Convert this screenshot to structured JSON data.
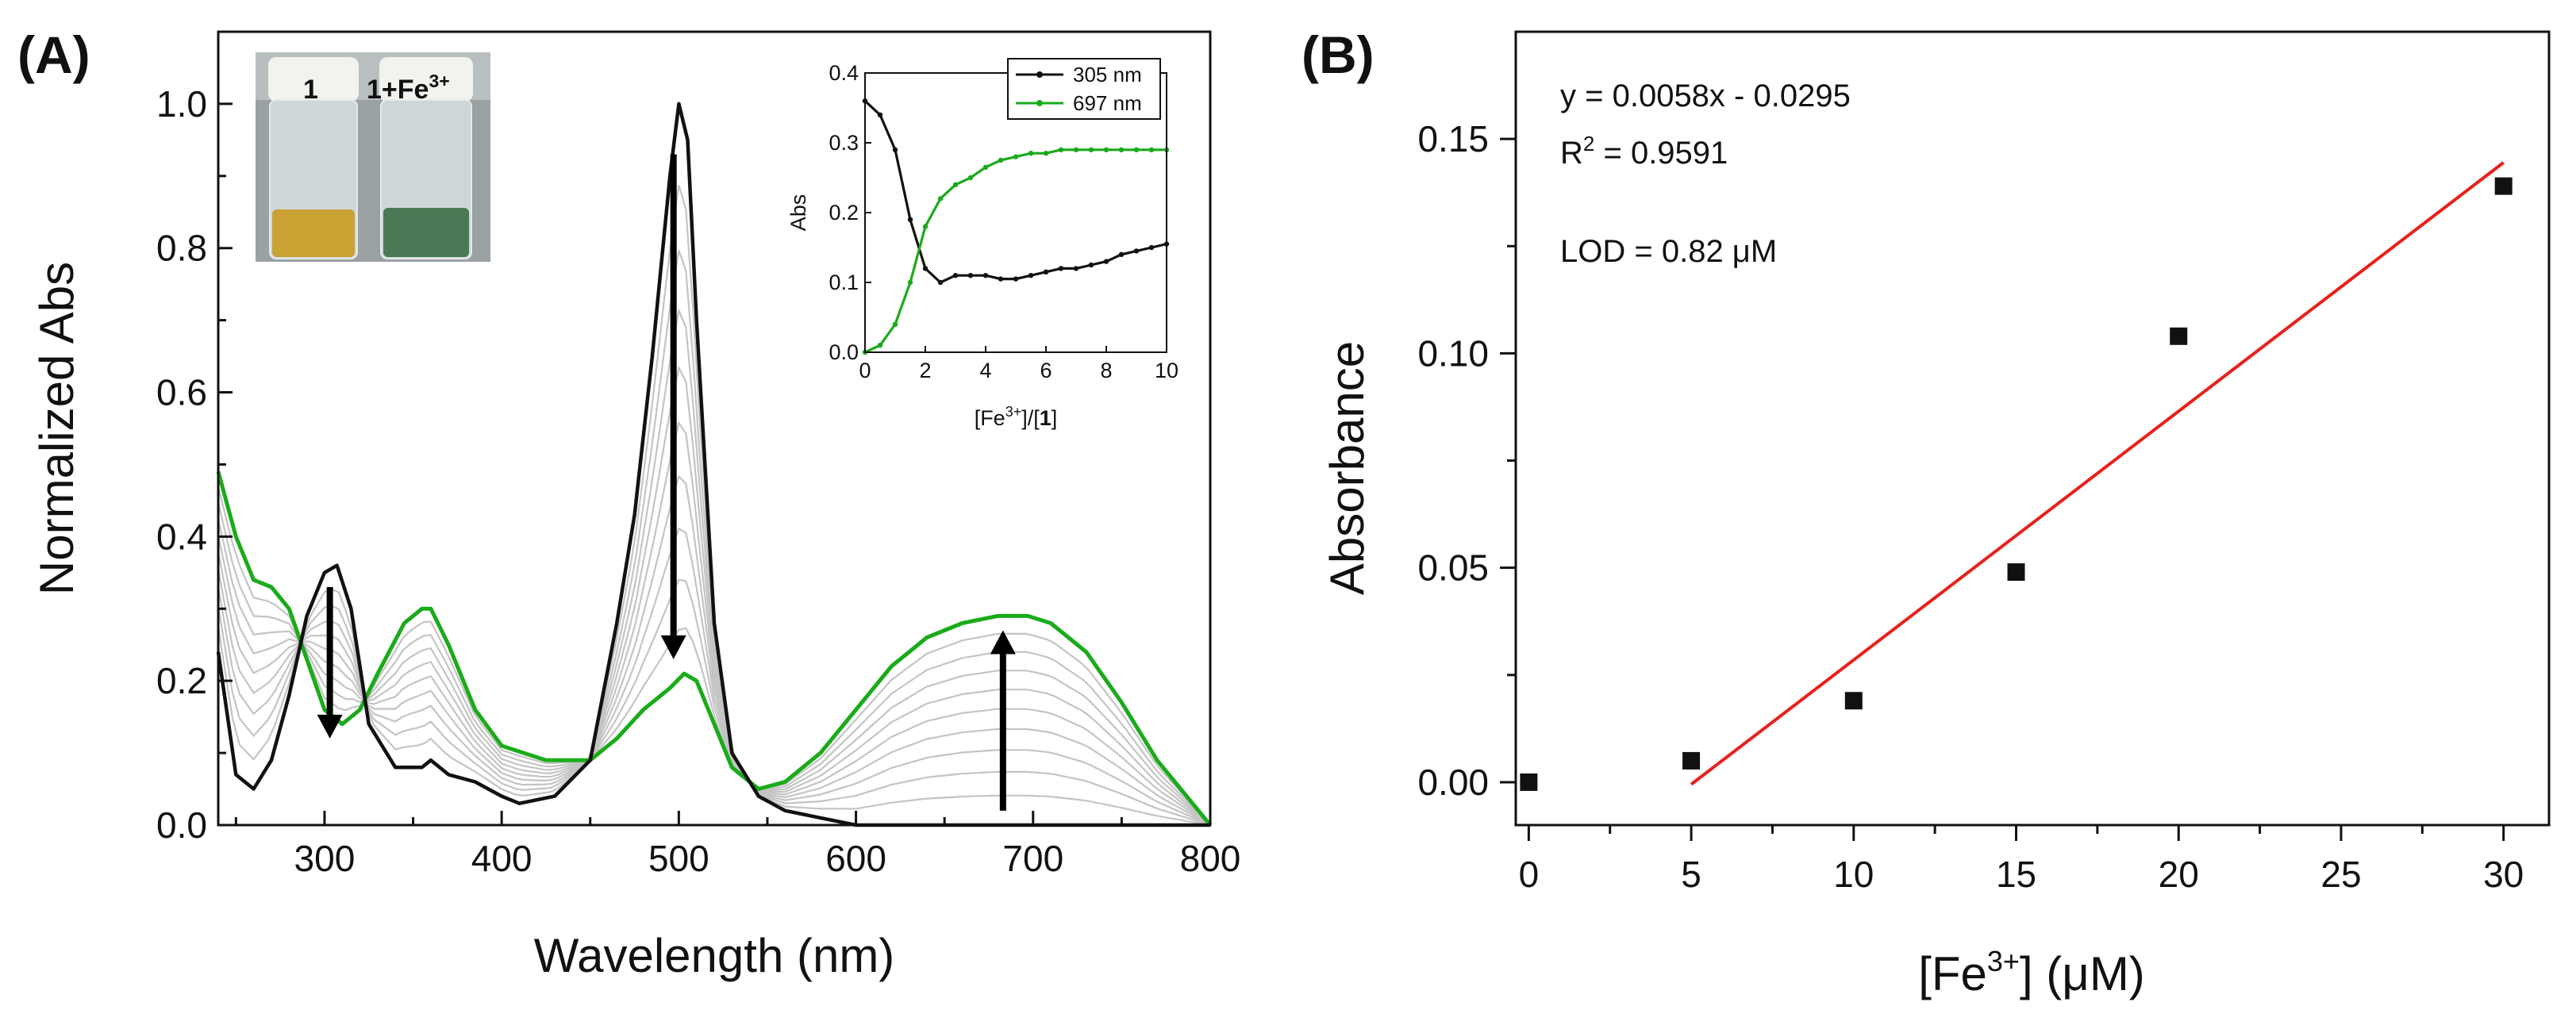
{
  "chart_data": [
    {
      "panel": "(A)",
      "type": "line",
      "xlabel": "Wavelength (nm)",
      "ylabel": "Normalized Abs",
      "xlim": [
        240,
        800
      ],
      "ylim": [
        0,
        1.1
      ],
      "xticks": [
        "300",
        "400",
        "500",
        "600",
        "700",
        "800"
      ],
      "yticks": [
        "0.0",
        "0.2",
        "0.4",
        "0.6",
        "0.8",
        "1.0"
      ],
      "colors": {
        "start": "#111111",
        "end": "#1aab1a",
        "intermediate": "#c4c4c4",
        "arrow": "#000000"
      },
      "series": [
        {
          "role": "initial",
          "x": [
            240,
            250,
            260,
            270,
            280,
            290,
            300,
            307,
            315,
            325,
            340,
            355,
            360,
            370,
            385,
            400,
            410,
            430,
            450,
            465,
            475,
            485,
            495,
            500,
            505,
            510,
            520,
            530,
            545,
            560,
            580,
            600,
            650,
            700,
            800
          ],
          "y": [
            0.24,
            0.07,
            0.05,
            0.09,
            0.18,
            0.29,
            0.35,
            0.36,
            0.3,
            0.14,
            0.08,
            0.08,
            0.09,
            0.07,
            0.06,
            0.04,
            0.03,
            0.04,
            0.09,
            0.28,
            0.43,
            0.65,
            0.9,
            1.0,
            0.95,
            0.7,
            0.28,
            0.1,
            0.04,
            0.02,
            0.01,
            0.0,
            0.0,
            0.0,
            0.0
          ]
        },
        {
          "role": "final",
          "x": [
            240,
            250,
            260,
            270,
            280,
            290,
            300,
            310,
            320,
            330,
            345,
            355,
            360,
            370,
            385,
            400,
            425,
            450,
            465,
            480,
            495,
            503,
            510,
            520,
            530,
            545,
            560,
            580,
            600,
            620,
            640,
            660,
            680,
            697,
            710,
            730,
            750,
            770,
            790,
            800
          ],
          "y": [
            0.49,
            0.4,
            0.34,
            0.33,
            0.3,
            0.23,
            0.16,
            0.14,
            0.16,
            0.21,
            0.28,
            0.3,
            0.3,
            0.25,
            0.16,
            0.11,
            0.09,
            0.09,
            0.12,
            0.16,
            0.19,
            0.21,
            0.2,
            0.14,
            0.08,
            0.05,
            0.06,
            0.1,
            0.16,
            0.22,
            0.26,
            0.28,
            0.29,
            0.29,
            0.28,
            0.24,
            0.17,
            0.09,
            0.03,
            0.0
          ]
        }
      ],
      "arrows": [
        {
          "x": 303,
          "y_from": 0.33,
          "y_to": 0.12
        },
        {
          "x": 497,
          "y_from": 0.93,
          "y_to": 0.23
        },
        {
          "x": 683,
          "y_from": 0.02,
          "y_to": 0.27
        }
      ],
      "photo_inset": {
        "labels": [
          "1",
          "1+Fe",
          "3+"
        ],
        "colors": {
          "left_solution": "#c9a233",
          "right_solution": "#4a7a55"
        }
      },
      "inset": {
        "type": "line",
        "xlabel": "[Fe",
        "xlabel_sup": "3+",
        "xlabel_tail": "]/[",
        "xlabel_bold": "1",
        "xlabel_end": "]",
        "ylabel": "Abs",
        "xlim": [
          0,
          10
        ],
        "ylim": [
          0,
          0.4
        ],
        "xticks": [
          "0",
          "2",
          "4",
          "6",
          "8",
          "10"
        ],
        "yticks": [
          "0.0",
          "0.1",
          "0.2",
          "0.3",
          "0.4"
        ],
        "legend": [
          "305 nm",
          "697 nm"
        ],
        "series": [
          {
            "name": "305 nm",
            "color": "#111111",
            "x": [
              0,
              0.5,
              1,
              1.5,
              2,
              2.5,
              3,
              3.5,
              4,
              4.5,
              5,
              5.5,
              6,
              6.5,
              7,
              7.5,
              8,
              8.5,
              9,
              9.5,
              10
            ],
            "y": [
              0.36,
              0.34,
              0.29,
              0.19,
              0.12,
              0.1,
              0.11,
              0.11,
              0.11,
              0.105,
              0.105,
              0.11,
              0.115,
              0.12,
              0.12,
              0.125,
              0.13,
              0.14,
              0.145,
              0.15,
              0.155
            ]
          },
          {
            "name": "697 nm",
            "color": "#1aab1a",
            "x": [
              0,
              0.5,
              1,
              1.5,
              2,
              2.5,
              3,
              3.5,
              4,
              4.5,
              5,
              5.5,
              6,
              6.5,
              7,
              7.5,
              8,
              8.5,
              9,
              9.5,
              10
            ],
            "y": [
              0.0,
              0.01,
              0.04,
              0.1,
              0.18,
              0.22,
              0.24,
              0.25,
              0.265,
              0.275,
              0.28,
              0.285,
              0.285,
              0.29,
              0.29,
              0.29,
              0.29,
              0.29,
              0.29,
              0.29,
              0.29
            ]
          }
        ]
      }
    },
    {
      "panel": "(B)",
      "type": "scatter",
      "xlabel": "[Fe",
      "xlabel_sup": "3+",
      "xlabel_tail": "] (μM)",
      "ylabel": "Absorbance",
      "xlim": [
        -0.4,
        31.4
      ],
      "ylim": [
        -0.01,
        0.175
      ],
      "xticks": [
        "0",
        "5",
        "10",
        "15",
        "20",
        "25",
        "30"
      ],
      "yticks": [
        "0.00",
        "0.05",
        "0.10",
        "0.15"
      ],
      "points": [
        {
          "x": 0,
          "y": 0.0
        },
        {
          "x": 5,
          "y": 0.005
        },
        {
          "x": 10,
          "y": 0.019
        },
        {
          "x": 15,
          "y": 0.049
        },
        {
          "x": 20,
          "y": 0.104
        },
        {
          "x": 30,
          "y": 0.139
        }
      ],
      "fit": {
        "slope": 0.0058,
        "intercept": -0.0295,
        "x_range": [
          5,
          30
        ],
        "color": "#e8201a"
      },
      "annotations": {
        "equation": "y = 0.0058x - 0.0295",
        "r2_main": "R",
        "r2_sup": "2",
        "r2_value": " = 0.9591",
        "lod": "LOD = 0.82 μM"
      }
    }
  ]
}
